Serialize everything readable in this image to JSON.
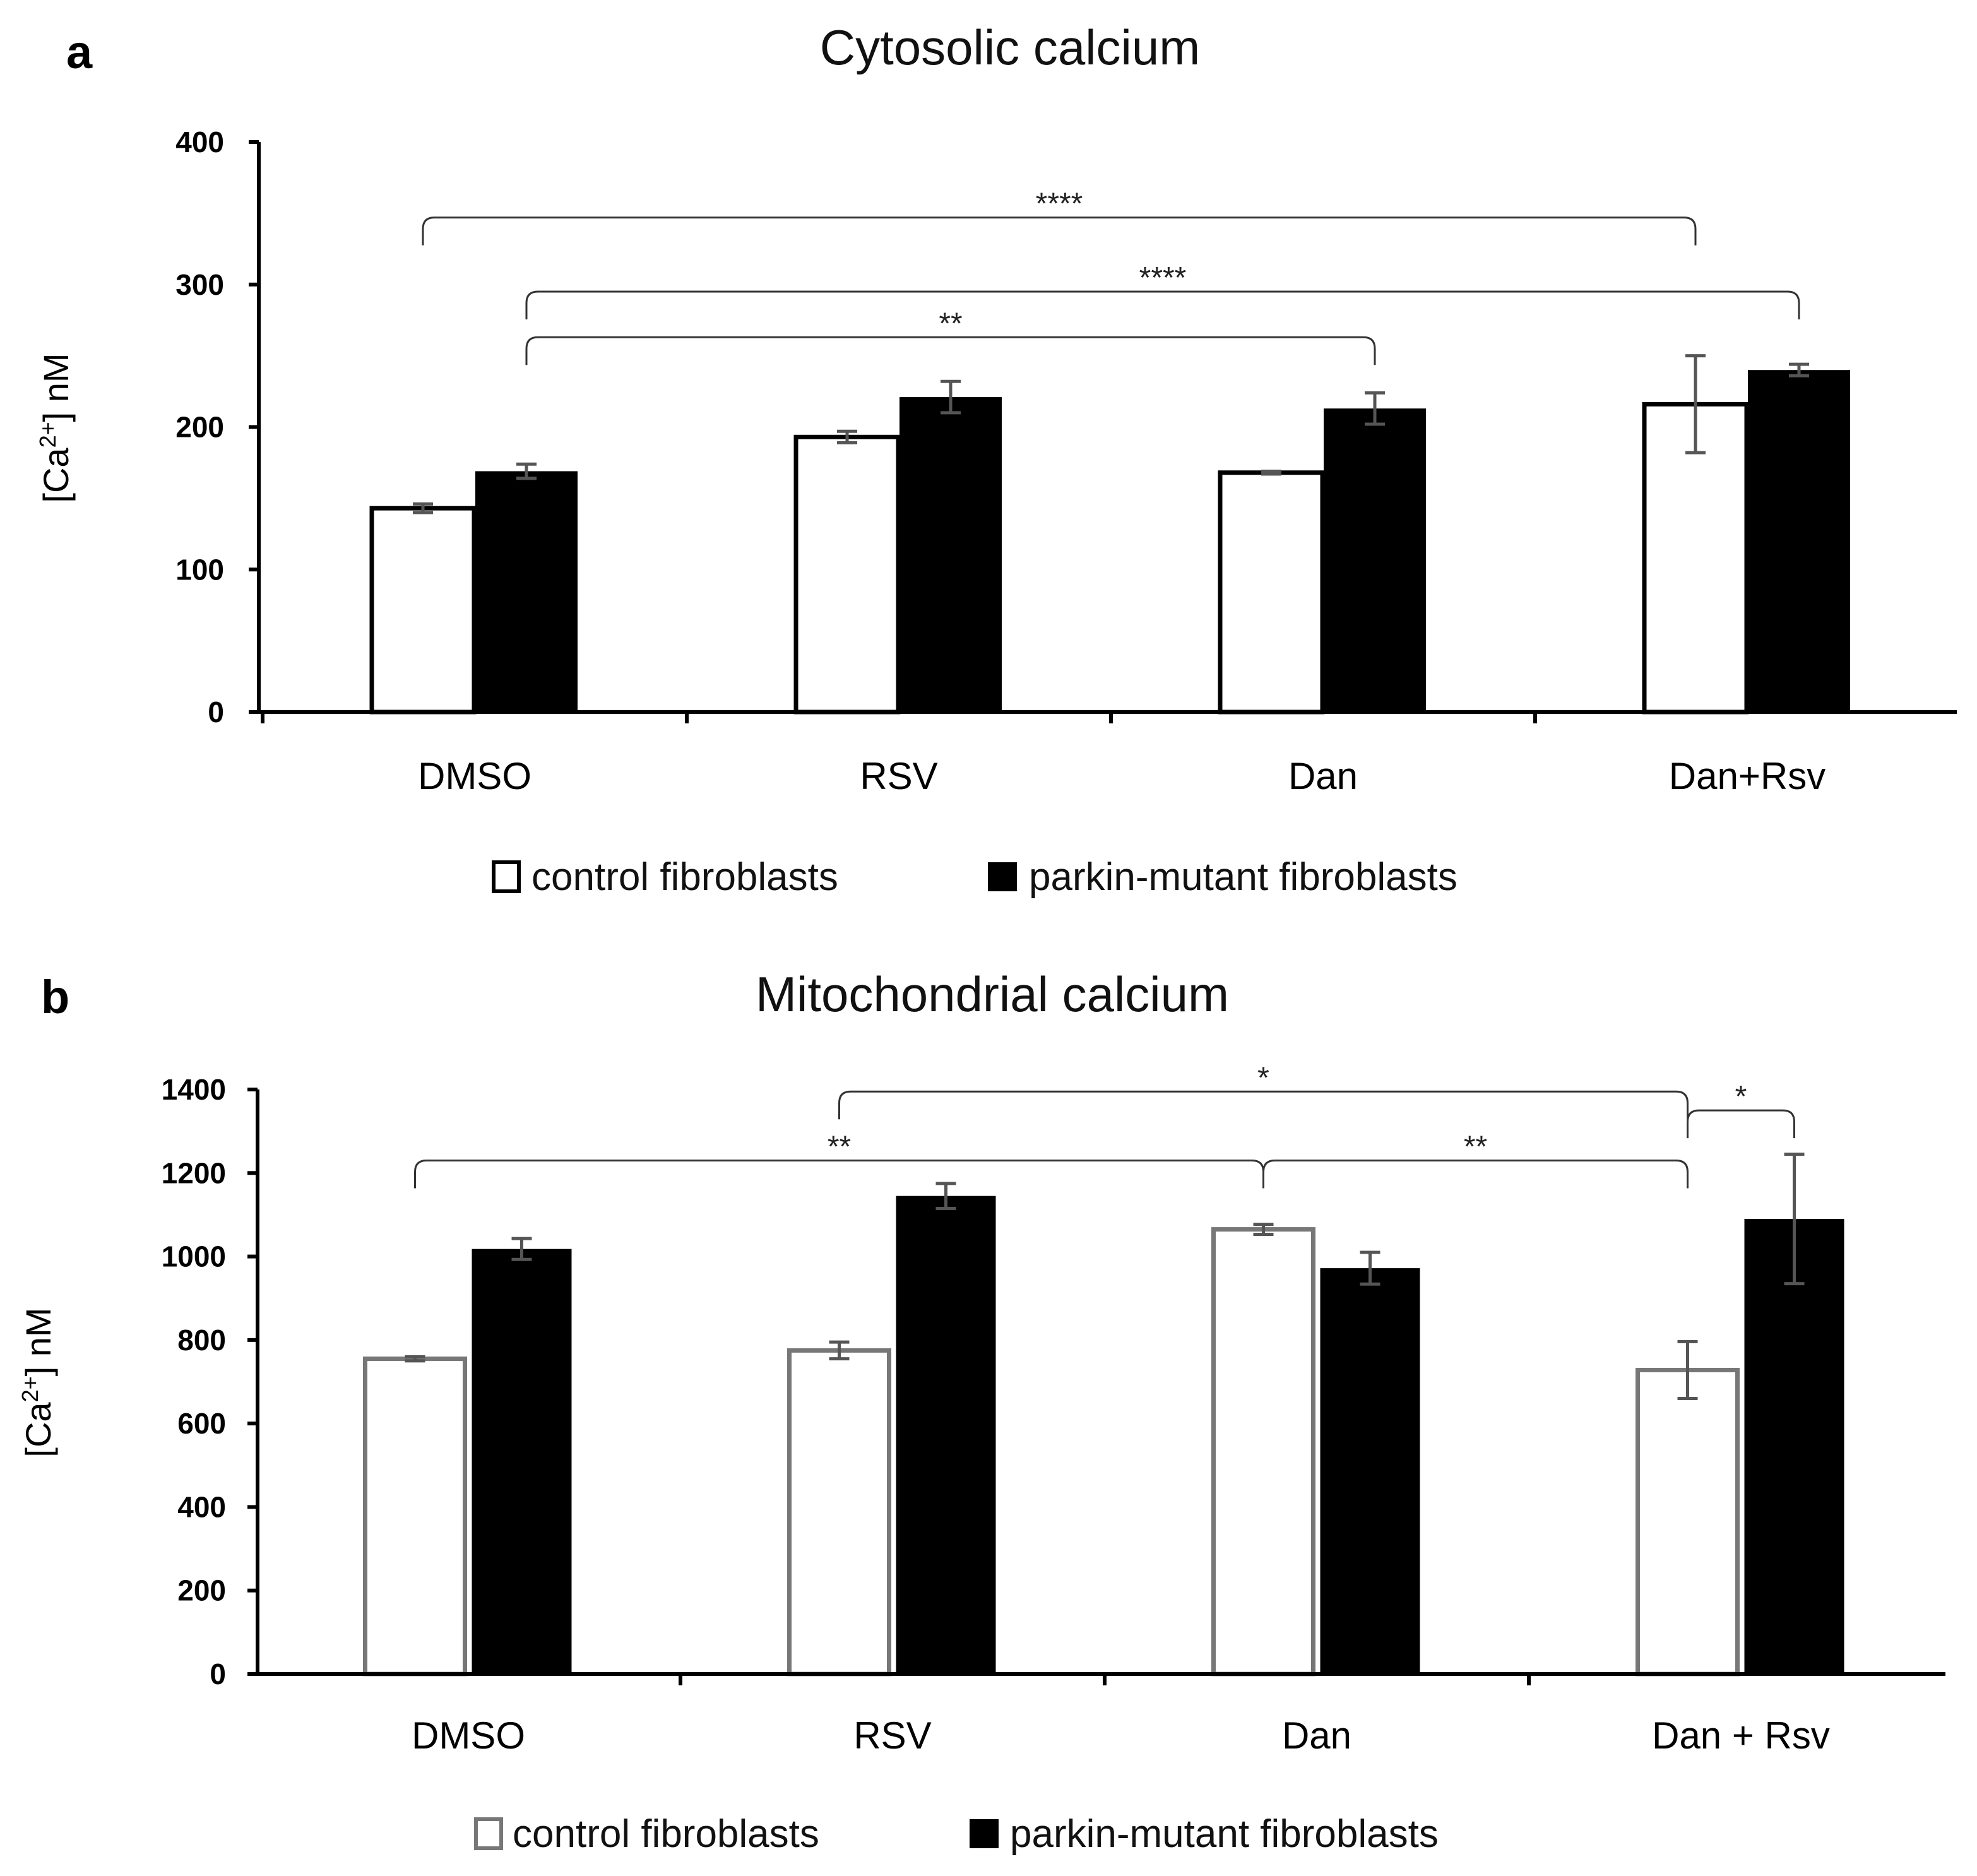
{
  "chart_data": [
    {
      "panel": "a",
      "type": "bar",
      "title": "Cytosolic calcium",
      "ylabel": "[Ca2+] nM",
      "xlabel": "",
      "ylim": [
        0,
        400
      ],
      "yticks": [
        0,
        100,
        200,
        300,
        400
      ],
      "categories": [
        "DMSO",
        "RSV",
        "Dan",
        "Dan+Rsv"
      ],
      "series": [
        {
          "name": "control fibroblasts",
          "fill": "#ffffff",
          "stroke": "#000000",
          "values": [
            143,
            193,
            168,
            216
          ],
          "errors": [
            3,
            4,
            1,
            34
          ]
        },
        {
          "name": "parkin-mutant fibroblasts",
          "fill": "#000000",
          "stroke": "#000000",
          "values": [
            169,
            221,
            213,
            240
          ],
          "errors": [
            5,
            11,
            11,
            4
          ]
        }
      ],
      "significance": [
        {
          "label": "****",
          "from": [
            0,
            0
          ],
          "to": [
            3,
            0
          ],
          "level": 347
        },
        {
          "label": "****",
          "from": [
            0,
            1
          ],
          "to": [
            3,
            1
          ],
          "level": 295
        },
        {
          "label": "**",
          "from": [
            0,
            1
          ],
          "to": [
            2,
            1
          ],
          "level": 263
        }
      ],
      "legend": [
        "control fibroblasts",
        "parkin-mutant fibroblasts"
      ]
    },
    {
      "panel": "b",
      "type": "bar",
      "title": "Mitochondrial calcium",
      "ylabel": "[Ca2+] nM",
      "xlabel": "",
      "ylim": [
        0,
        1400
      ],
      "yticks": [
        0,
        200,
        400,
        600,
        800,
        1000,
        1200,
        1400
      ],
      "categories": [
        "DMSO",
        "RSV",
        "Dan",
        "Dan + Rsv"
      ],
      "series": [
        {
          "name": "control fibroblasts",
          "fill": "#ffffff",
          "stroke": "#777777",
          "values": [
            755,
            775,
            1065,
            728
          ],
          "errors": [
            5,
            20,
            12,
            68
          ]
        },
        {
          "name": "parkin-mutant fibroblasts",
          "fill": "#000000",
          "stroke": "#000000",
          "values": [
            1018,
            1145,
            972,
            1090
          ],
          "errors": [
            25,
            30,
            38,
            155
          ]
        }
      ],
      "significance": [
        {
          "label": "*",
          "from": [
            1,
            0
          ],
          "to": [
            3,
            0
          ],
          "level": 1395
        },
        {
          "label": "**",
          "from": [
            0,
            0
          ],
          "to": [
            2,
            0
          ],
          "level": 1230
        },
        {
          "label": "**",
          "from": [
            2,
            0
          ],
          "to": [
            3,
            0
          ],
          "level": 1230
        },
        {
          "label": "*",
          "from": [
            3,
            0
          ],
          "to": [
            3,
            1
          ],
          "level": 1350
        }
      ],
      "legend": [
        "control fibroblasts",
        "parkin-mutant fibroblasts"
      ]
    }
  ]
}
